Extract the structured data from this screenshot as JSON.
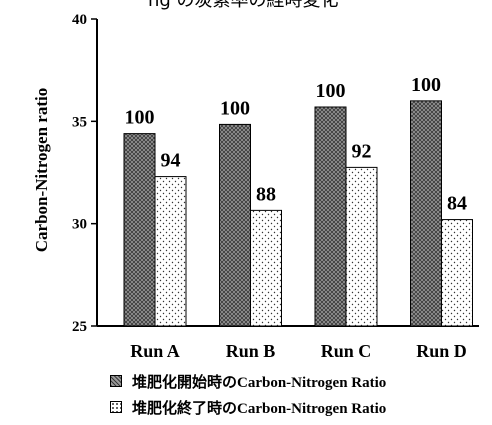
{
  "chart_data": {
    "type": "bar",
    "title": "ng  の炭素率の経時変化",
    "ylabel": "Carbon-Nitrogen ratio",
    "xlabel": "",
    "ylim": [
      25,
      40
    ],
    "yticks": [
      25,
      30,
      35,
      40
    ],
    "grid": false,
    "legend_position": "bottom",
    "categories": [
      "Run A",
      "Run B",
      "Run C",
      "Run D"
    ],
    "series": [
      {
        "name": "堆肥化開始時のCarbon-Nitrogen Ratio",
        "values": [
          34.4,
          34.85,
          35.7,
          36.0
        ],
        "data_labels": [
          "100",
          "100",
          "100",
          "100"
        ],
        "pattern": "crosshatch",
        "color": "#888888"
      },
      {
        "name": "堆肥化終了時のCarbon-Nitrogen Ratio",
        "values": [
          32.3,
          30.65,
          32.75,
          30.2
        ],
        "data_labels": [
          "94",
          "88",
          "92",
          "84"
        ],
        "pattern": "dots",
        "color": "#ffffff"
      }
    ]
  }
}
